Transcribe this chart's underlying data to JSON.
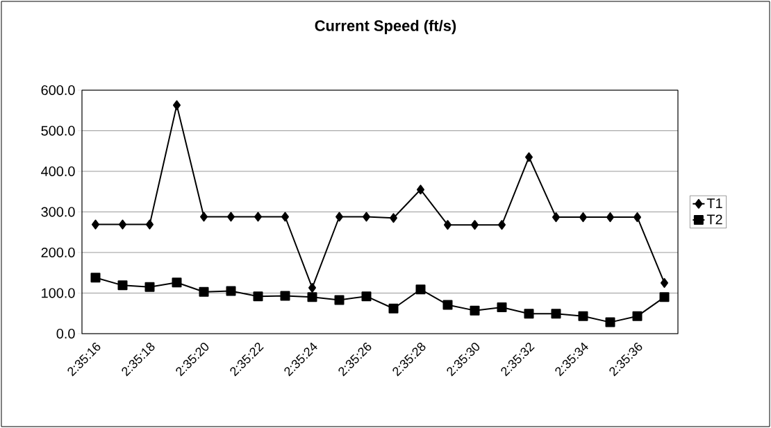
{
  "chart_data": {
    "type": "line",
    "title": "Current Speed (ft/s)",
    "categories": [
      "2:35:16",
      null,
      "2:35:18",
      null,
      "2:35:20",
      null,
      "2:35:22",
      null,
      "2:35:24",
      null,
      "2:35:26",
      null,
      "2:35:28",
      null,
      "2:35:30",
      null,
      "2:35:32",
      null,
      "2:35:34",
      null,
      "2:35:36",
      null
    ],
    "series": [
      {
        "name": "T1",
        "color": "#000000",
        "marker": "diamond",
        "values": [
          269,
          269,
          269,
          563,
          288,
          288,
          288,
          288,
          113,
          288,
          288,
          285,
          355,
          268,
          268,
          268,
          435,
          287,
          287,
          287,
          287,
          125
        ]
      },
      {
        "name": "T2",
        "color": "#000000",
        "marker": "square",
        "values": [
          138,
          119,
          115,
          126,
          103,
          105,
          92,
          93,
          90,
          83,
          92,
          62,
          109,
          71,
          57,
          65,
          49,
          49,
          43,
          28,
          43,
          90
        ]
      }
    ],
    "ylim": [
      0,
      600
    ],
    "yticks": [
      {
        "value": 0,
        "label": "0.0"
      },
      {
        "value": 100,
        "label": "100.0"
      },
      {
        "value": 200,
        "label": "200.0"
      },
      {
        "value": 300,
        "label": "300.0"
      },
      {
        "value": 400,
        "label": "400.0"
      },
      {
        "value": 500,
        "label": "500.0"
      },
      {
        "value": 600,
        "label": "600.0"
      }
    ],
    "grid": "y",
    "legend": "right",
    "line_style": "solid"
  }
}
